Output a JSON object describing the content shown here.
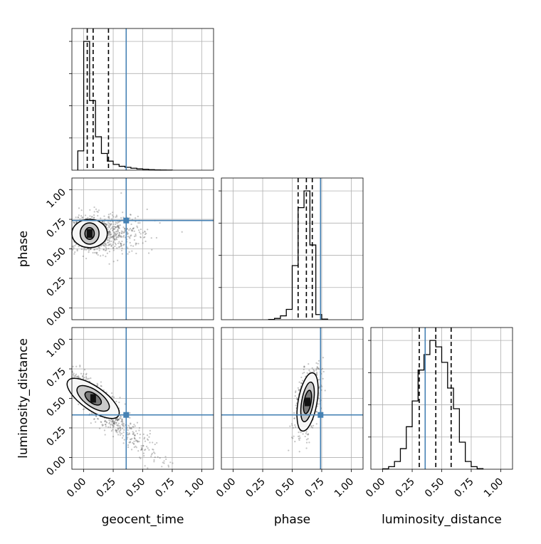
{
  "chart_data": {
    "type": "corner",
    "parameters": [
      "geocent_time",
      "phase",
      "luminosity_distance"
    ],
    "axis_range": [
      -0.1,
      1.1
    ],
    "tick_labels": [
      "0.00",
      "0.25",
      "0.50",
      "0.75",
      "1.00"
    ],
    "tick_values": [
      0,
      0.25,
      0.5,
      0.75,
      1.0
    ],
    "grid": true,
    "truths": {
      "geocent_time": 0.36,
      "phase": 0.74,
      "luminosity_distance": 0.36
    },
    "truth_color": "#4682b4",
    "hist_color": "#000000",
    "histograms": {
      "geocent_time": {
        "bin_edges": [
          -0.05,
          0.0,
          0.05,
          0.1,
          0.15,
          0.2,
          0.25,
          0.3,
          0.35,
          0.4,
          0.45,
          0.5,
          0.55,
          0.6,
          0.65,
          0.7,
          0.75
        ],
        "counts": [
          0.15,
          1.0,
          0.54,
          0.26,
          0.13,
          0.07,
          0.045,
          0.03,
          0.022,
          0.015,
          0.01,
          0.007,
          0.004,
          0.002,
          0.001,
          0.0005
        ],
        "quantiles": [
          0.03,
          0.08,
          0.21
        ]
      },
      "phase": {
        "bin_edges": [
          0.3,
          0.35,
          0.4,
          0.45,
          0.5,
          0.55,
          0.6,
          0.65,
          0.7,
          0.75,
          0.8
        ],
        "counts": [
          0.002,
          0.01,
          0.03,
          0.08,
          0.42,
          0.87,
          1.0,
          0.58,
          0.04,
          0.005
        ],
        "quantiles": [
          0.55,
          0.62,
          0.67
        ]
      },
      "luminosity_distance": {
        "bin_edges": [
          0.0,
          0.05,
          0.1,
          0.15,
          0.2,
          0.25,
          0.3,
          0.35,
          0.4,
          0.45,
          0.5,
          0.55,
          0.6,
          0.65,
          0.7,
          0.75,
          0.8,
          0.85
        ],
        "counts": [
          0.003,
          0.02,
          0.06,
          0.16,
          0.33,
          0.53,
          0.77,
          0.89,
          1.0,
          0.95,
          0.83,
          0.63,
          0.47,
          0.21,
          0.06,
          0.02,
          0.005
        ],
        "quantiles": [
          0.31,
          0.45,
          0.58
        ]
      }
    },
    "scatter_2d": [
      {
        "x_param": "geocent_time",
        "y_param": "phase",
        "center": [
          0.05,
          0.63
        ],
        "contours": [
          {
            "rx": 0.04,
            "ry": 0.05,
            "rotation": 0
          },
          {
            "rx": 0.08,
            "ry": 0.09,
            "rotation": 0
          },
          {
            "rx": 0.15,
            "ry": 0.12,
            "rotation": 0
          }
        ],
        "scatter_spread": [
          0.14,
          0.08
        ],
        "scatter_skew_x": 0.18
      },
      {
        "x_param": "geocent_time",
        "y_param": "luminosity_distance",
        "center": [
          0.08,
          0.5
        ],
        "contours": [
          {
            "rx": 0.04,
            "ry": 0.08,
            "rotation": -55
          },
          {
            "rx": 0.07,
            "ry": 0.16,
            "rotation": -55
          },
          {
            "rx": 0.1,
            "ry": 0.26,
            "rotation": -55
          }
        ],
        "scatter_spread": [
          0.12,
          0.12
        ],
        "scatter_skew_x": 0.25
      },
      {
        "x_param": "phase",
        "y_param": "luminosity_distance",
        "center": [
          0.63,
          0.47
        ],
        "contours": [
          {
            "rx": 0.03,
            "ry": 0.1,
            "rotation": 10
          },
          {
            "rx": 0.05,
            "ry": 0.17,
            "rotation": 10
          },
          {
            "rx": 0.08,
            "ry": 0.25,
            "rotation": 10
          }
        ],
        "scatter_spread": [
          0.05,
          0.12
        ],
        "scatter_skew_x": 0.0
      }
    ]
  }
}
